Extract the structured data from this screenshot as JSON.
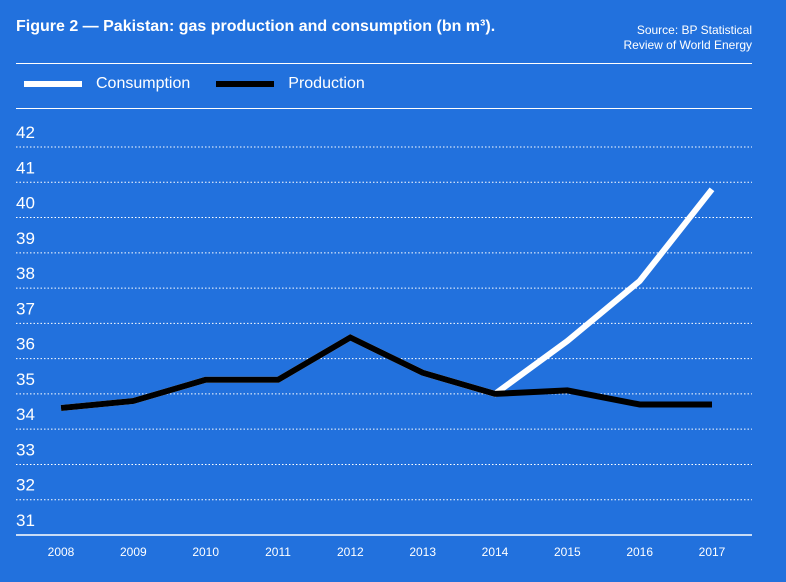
{
  "title": "Figure 2 — Pakistan: gas production and consumption (bn m³).",
  "source": [
    "Source: BP Statistical",
    "Review of World Energy"
  ],
  "colors": {
    "background": "#2271dd",
    "consumption": "#ffffff",
    "production": "#000000"
  },
  "chart_data": {
    "type": "line",
    "title": "Figure 2 — Pakistan: gas production and consumption (bn m³).",
    "xlabel": "",
    "ylabel": "",
    "ylim": [
      31,
      42
    ],
    "yticks": [
      31,
      32,
      33,
      34,
      35,
      36,
      37,
      38,
      39,
      40,
      41,
      42
    ],
    "categories": [
      "2008",
      "2009",
      "2010",
      "2011",
      "2012",
      "2013",
      "2014",
      "2015",
      "2016",
      "2017"
    ],
    "grid": true,
    "legend_position": "top-left",
    "series": [
      {
        "name": "Consumption",
        "values": [
          34.6,
          34.8,
          35.4,
          35.4,
          36.6,
          35.6,
          35.0,
          36.5,
          38.2,
          40.8
        ]
      },
      {
        "name": "Production",
        "values": [
          34.6,
          34.8,
          35.4,
          35.4,
          36.6,
          35.6,
          35.0,
          35.1,
          34.7,
          34.7
        ]
      }
    ]
  }
}
